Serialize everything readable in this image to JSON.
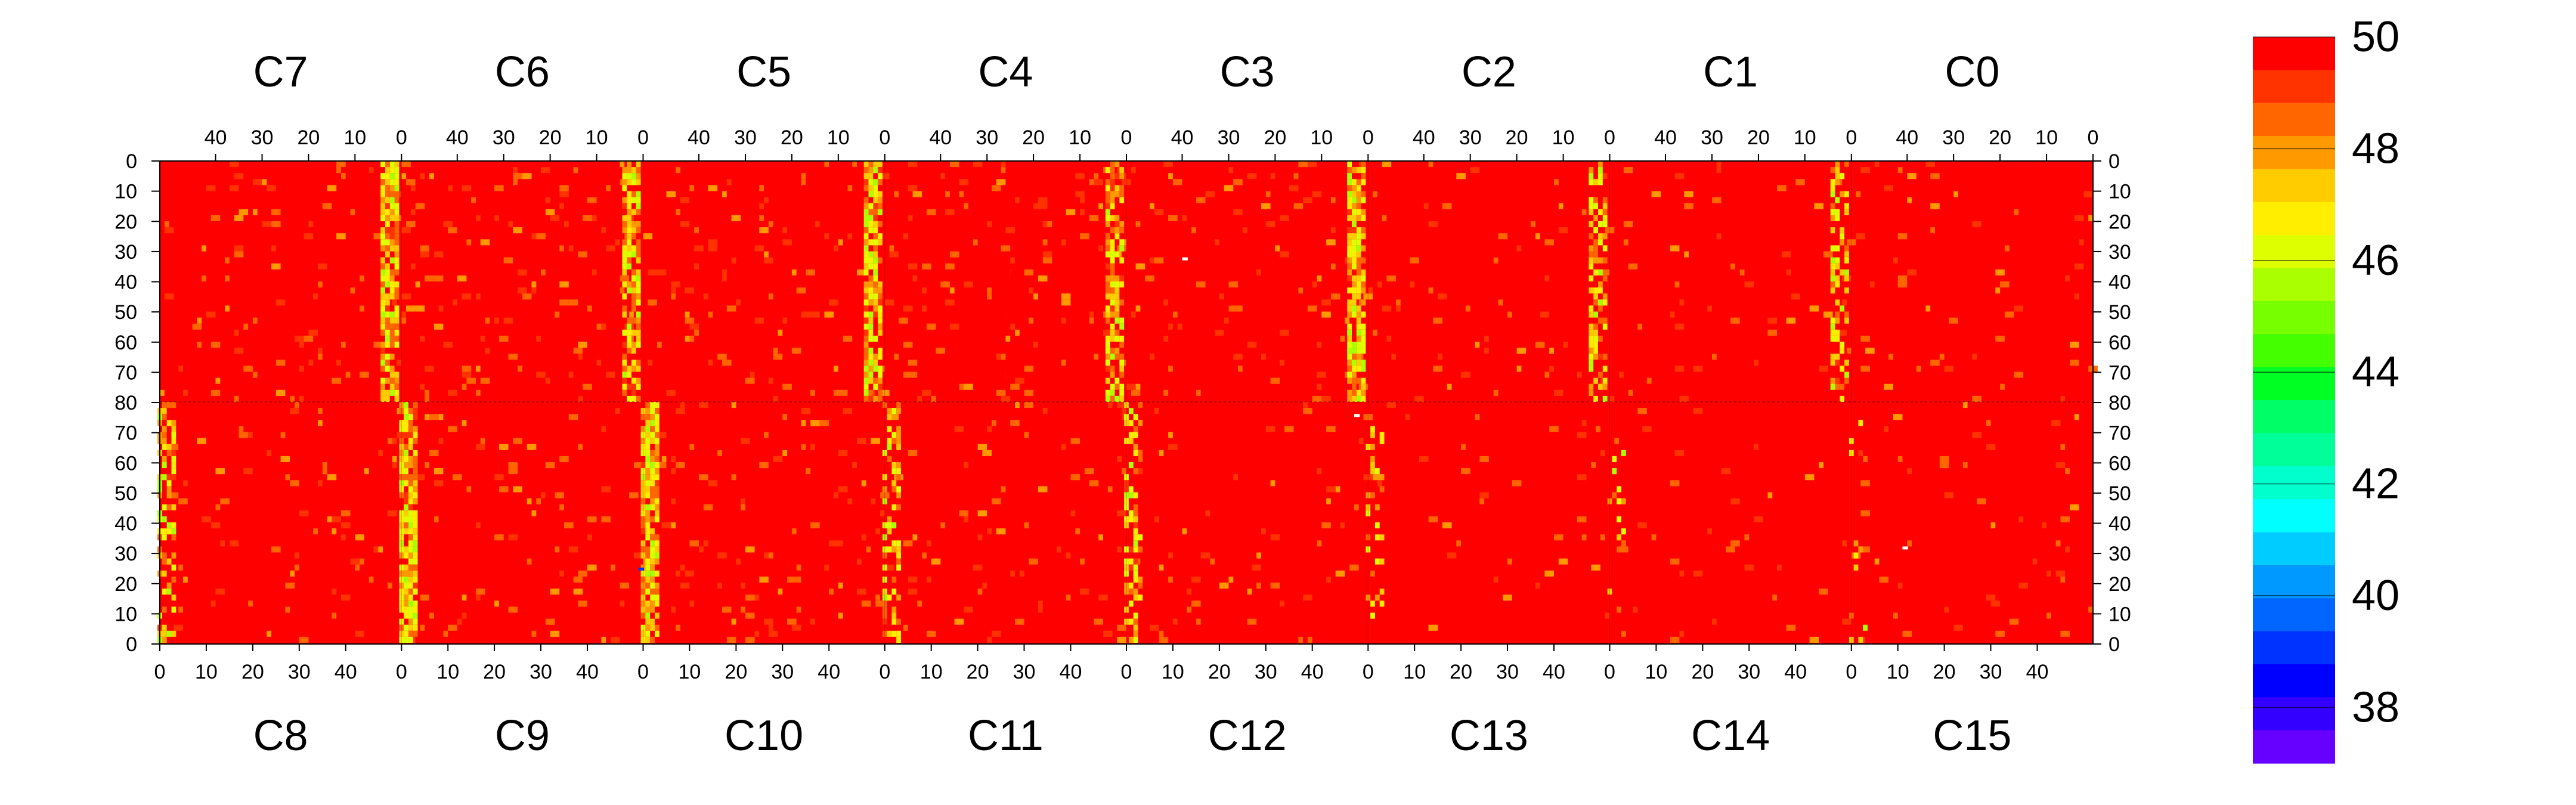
{
  "chart_data": {
    "type": "heatmap",
    "title": "",
    "top_row_chips": [
      "C7",
      "C6",
      "C5",
      "C4",
      "C3",
      "C2",
      "C1",
      "C0"
    ],
    "bottom_row_chips": [
      "C8",
      "C9",
      "C10",
      "C11",
      "C12",
      "C13",
      "C14",
      "C15"
    ],
    "top_axis_ticks": [
      "40",
      "30",
      "20",
      "10",
      "0"
    ],
    "bottom_axis_ticks": [
      "0",
      "10",
      "20",
      "30",
      "40"
    ],
    "left_axis_ticks": [
      "0",
      "10",
      "20",
      "30",
      "40",
      "50",
      "60",
      "70",
      "80",
      "70",
      "60",
      "50",
      "40",
      "30",
      "20",
      "10",
      "0"
    ],
    "right_axis_ticks": [
      "0",
      "10",
      "20",
      "30",
      "40",
      "50",
      "60",
      "70",
      "80",
      "70",
      "60",
      "50",
      "40",
      "30",
      "20",
      "10",
      "0"
    ],
    "columns_per_chip": 52,
    "rows_per_half": 80,
    "z_range": [
      37,
      50
    ],
    "colorbar_ticks": [
      "50",
      "48",
      "46",
      "44",
      "42",
      "40",
      "38"
    ],
    "colorbar_colors": [
      "#ff0000",
      "#ff3300",
      "#ff6600",
      "#ff9900",
      "#ffcc00",
      "#ffee00",
      "#ddff00",
      "#aaff00",
      "#77ff00",
      "#44ff00",
      "#00ff22",
      "#00ff66",
      "#00ff99",
      "#00ffcc",
      "#00ffff",
      "#00ccff",
      "#0099ff",
      "#0066ff",
      "#0033ff",
      "#0000ff",
      "#3300ff",
      "#6600ff"
    ],
    "grid": false,
    "notes_visible": "Most pixels at 50; lower values concentrated in columns near 0 of C5/C6/C7/C4/C3/C2 and C9/C10/C11"
  }
}
